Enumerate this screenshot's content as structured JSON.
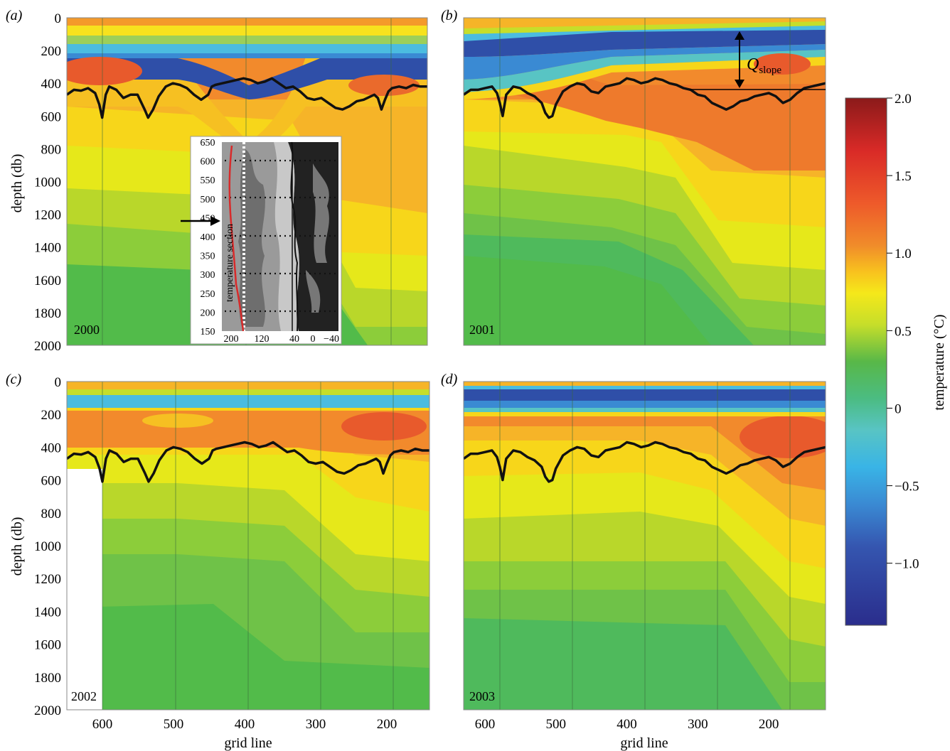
{
  "figure": {
    "xlabel": "grid line",
    "ylabel": "depth (db)",
    "colorbar_label": "temperature (°C)",
    "colorbar_ticks": [
      2.0,
      1.5,
      1.0,
      0.5,
      0,
      -0.5,
      -1.0
    ],
    "colorbar_tick_labels": [
      "2.0",
      "1.5",
      "1.0",
      "0.5",
      "0",
      "−0.5",
      "−1.0"
    ],
    "colorbar_range": [
      -1.4,
      2.0
    ],
    "qslope_label": "Q",
    "qslope_sub": "slope"
  },
  "chart_data": [
    {
      "type": "heatmap",
      "panel": "(a)",
      "year": "2000",
      "xlabel": "",
      "ylabel": "depth (db)",
      "xlim": [
        650,
        140
      ],
      "ylim": [
        2000,
        0
      ],
      "x_ticks": [
        600,
        500,
        400,
        300,
        200
      ],
      "y_ticks": [
        0,
        200,
        400,
        600,
        800,
        1000,
        1200,
        1400,
        1600,
        1800,
        2000
      ],
      "interface_depth": {
        "x": [
          650,
          640,
          630,
          620,
          610,
          604,
          600,
          595,
          590,
          580,
          570,
          560,
          550,
          540,
          535,
          528,
          520,
          510,
          500,
          490,
          480,
          470,
          460,
          450,
          445,
          440,
          430,
          420,
          410,
          400,
          390,
          380,
          370,
          360,
          350,
          340,
          330,
          320,
          310,
          300,
          290,
          280,
          270,
          260,
          250,
          240,
          230,
          220,
          215,
          210,
          205,
          200,
          195,
          190,
          180,
          170,
          160,
          150,
          140
        ],
        "y": [
          470,
          440,
          445,
          430,
          460,
          530,
          610,
          470,
          420,
          440,
          490,
          470,
          470,
          560,
          610,
          560,
          480,
          420,
          400,
          410,
          430,
          470,
          500,
          470,
          420,
          410,
          400,
          390,
          380,
          370,
          380,
          400,
          390,
          370,
          400,
          430,
          420,
          450,
          490,
          500,
          490,
          520,
          550,
          560,
          540,
          510,
          500,
          480,
          470,
          490,
          560,
          500,
          450,
          430,
          420,
          430,
          410,
          420,
          420
        ]
      }
    },
    {
      "type": "heatmap",
      "panel": "(b)",
      "year": "2001",
      "xlabel": "",
      "ylabel": "",
      "xlim": [
        630,
        120
      ],
      "ylim": [
        2000,
        0
      ],
      "x_ticks": [],
      "y_ticks": [],
      "interface_depth": {
        "x": [
          630,
          620,
          610,
          600,
          590,
          583,
          579,
          575,
          570,
          560,
          550,
          540,
          530,
          520,
          515,
          510,
          505,
          500,
          490,
          480,
          470,
          460,
          450,
          440,
          430,
          420,
          410,
          400,
          390,
          380,
          370,
          360,
          350,
          340,
          330,
          320,
          310,
          300,
          290,
          280,
          270,
          260,
          250,
          240,
          230,
          220,
          210,
          200,
          190,
          180,
          170,
          160,
          150,
          140,
          130,
          120
        ],
        "y": [
          470,
          440,
          440,
          430,
          420,
          460,
          520,
          600,
          470,
          420,
          430,
          460,
          480,
          520,
          580,
          610,
          600,
          530,
          450,
          420,
          400,
          410,
          450,
          460,
          420,
          410,
          400,
          370,
          380,
          400,
          390,
          370,
          380,
          400,
          410,
          430,
          440,
          470,
          480,
          520,
          540,
          560,
          540,
          510,
          500,
          480,
          470,
          460,
          480,
          520,
          500,
          460,
          430,
          420,
          410,
          400
        ]
      }
    },
    {
      "type": "heatmap",
      "panel": "(c)",
      "year": "2002",
      "xlabel": "grid line",
      "ylabel": "depth (db)",
      "xlim": [
        650,
        140
      ],
      "ylim": [
        2000,
        0
      ],
      "x_ticks": [
        600,
        500,
        400,
        300,
        200
      ],
      "y_ticks": [
        0,
        200,
        400,
        600,
        800,
        1000,
        1200,
        1400,
        1600,
        1800,
        2000
      ],
      "interface_depth": {
        "x": [
          650,
          640,
          630,
          620,
          610,
          604,
          600,
          595,
          590,
          580,
          570,
          560,
          550,
          540,
          535,
          528,
          520,
          510,
          500,
          490,
          480,
          470,
          460,
          450,
          445,
          440,
          430,
          420,
          410,
          400,
          390,
          380,
          370,
          360,
          350,
          340,
          330,
          320,
          310,
          300,
          290,
          280,
          270,
          260,
          250,
          240,
          230,
          220,
          215,
          210,
          205,
          200,
          195,
          190,
          180,
          170,
          160,
          150,
          140
        ],
        "y": [
          470,
          440,
          445,
          430,
          460,
          530,
          610,
          470,
          420,
          440,
          490,
          470,
          470,
          560,
          610,
          560,
          480,
          420,
          400,
          410,
          430,
          470,
          500,
          470,
          420,
          410,
          400,
          390,
          380,
          370,
          380,
          400,
          390,
          370,
          400,
          430,
          420,
          450,
          490,
          500,
          490,
          520,
          550,
          560,
          540,
          510,
          500,
          480,
          470,
          490,
          560,
          500,
          450,
          430,
          420,
          430,
          410,
          420,
          420
        ]
      }
    },
    {
      "type": "heatmap",
      "panel": "(d)",
      "year": "2003",
      "xlabel": "grid line",
      "ylabel": "",
      "xlim": [
        630,
        120
      ],
      "ylim": [
        2000,
        0
      ],
      "x_ticks": [
        600,
        500,
        400,
        300,
        200
      ],
      "y_ticks": [],
      "interface_depth": {
        "x": [
          630,
          620,
          610,
          600,
          590,
          583,
          579,
          575,
          570,
          560,
          550,
          540,
          530,
          520,
          515,
          510,
          505,
          500,
          490,
          480,
          470,
          460,
          450,
          440,
          430,
          420,
          410,
          400,
          390,
          380,
          370,
          360,
          350,
          340,
          330,
          320,
          310,
          300,
          290,
          280,
          270,
          260,
          250,
          240,
          230,
          220,
          210,
          200,
          190,
          180,
          170,
          160,
          150,
          140,
          130,
          120
        ],
        "y": [
          470,
          440,
          440,
          430,
          420,
          460,
          520,
          600,
          470,
          420,
          430,
          460,
          480,
          520,
          580,
          610,
          600,
          530,
          450,
          420,
          400,
          410,
          450,
          460,
          420,
          410,
          400,
          370,
          380,
          400,
          390,
          370,
          380,
          400,
          410,
          430,
          440,
          470,
          480,
          520,
          540,
          560,
          540,
          510,
          500,
          480,
          470,
          460,
          480,
          520,
          500,
          460,
          430,
          420,
          410,
          400
        ]
      }
    }
  ],
  "inset": {
    "y_ticks": [
      "650",
      "600",
      "550",
      "500",
      "450",
      "400",
      "350",
      "300",
      "250",
      "200",
      "150"
    ],
    "x_ticks": [
      "200",
      "120",
      "40",
      "0",
      "−40"
    ],
    "label": "temperature section"
  }
}
